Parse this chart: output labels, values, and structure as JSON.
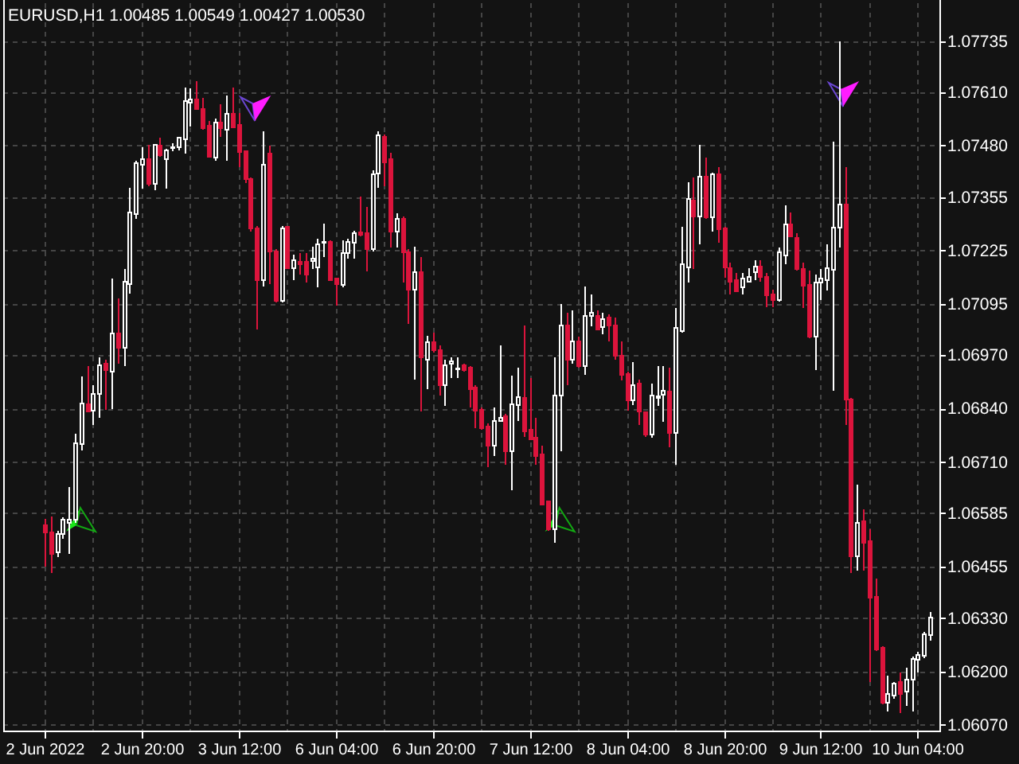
{
  "chart_data": {
    "type": "candlestick",
    "title": "EURUSD,H1 1.00485 1.00549 1.00427 1.00530",
    "categories": [
      "2 Jun 2022",
      null,
      null,
      null,
      null,
      null,
      null,
      null,
      null,
      null,
      null,
      null,
      null,
      null,
      null,
      null,
      "2 Jun 20:00",
      null,
      null,
      null,
      null,
      null,
      null,
      null,
      null,
      null,
      null,
      null,
      null,
      null,
      null,
      null,
      "3 Jun 12:00",
      null,
      null,
      null,
      null,
      null,
      null,
      null,
      null,
      null,
      null,
      null,
      null,
      null,
      null,
      null,
      "6 Jun 04:00",
      null,
      null,
      null,
      null,
      null,
      null,
      null,
      null,
      null,
      null,
      null,
      null,
      null,
      null,
      null,
      "6 Jun 20:00",
      null,
      null,
      null,
      null,
      null,
      null,
      null,
      null,
      null,
      null,
      null,
      null,
      null,
      null,
      null,
      "7 Jun 12:00",
      null,
      null,
      null,
      null,
      null,
      null,
      null,
      null,
      null,
      null,
      null,
      null,
      null,
      null,
      null,
      "8 Jun 04:00",
      null,
      null,
      null,
      null,
      null,
      null,
      null,
      null,
      null,
      null,
      null,
      null,
      null,
      null,
      null,
      "8 Jun 20:00",
      null,
      null,
      null,
      null,
      null,
      null,
      null,
      null,
      null,
      null,
      null,
      null,
      null,
      null,
      null,
      "9 Jun 12:00",
      null,
      null,
      null,
      null,
      null,
      null,
      null,
      null,
      null,
      null,
      null,
      null,
      null,
      null,
      null,
      "10 Jun 04:00",
      null,
      null
    ],
    "ohlc": [
      [
        1.06555,
        1.06571,
        1.06455,
        1.06538
      ],
      [
        1.06538,
        1.06577,
        1.06438,
        1.06486
      ],
      [
        1.0649,
        1.06542,
        1.06477,
        1.06533
      ],
      [
        1.06533,
        1.06574,
        1.06522,
        1.06568
      ],
      [
        1.06561,
        1.06648,
        1.06486,
        1.06569
      ],
      [
        1.06568,
        1.06778,
        1.06561,
        1.06755
      ],
      [
        1.06752,
        1.06917,
        1.06738,
        1.06852
      ],
      [
        1.06849,
        1.06943,
        1.0683,
        1.06833
      ],
      [
        1.06835,
        1.06897,
        1.068,
        1.06875
      ],
      [
        1.06875,
        1.06965,
        1.06816,
        1.06945
      ],
      [
        1.06949,
        1.06959,
        1.06837,
        1.06934
      ],
      [
        1.0693,
        1.07156,
        1.06839,
        1.07023
      ],
      [
        1.07023,
        1.07107,
        1.06949,
        1.06988
      ],
      [
        1.06988,
        1.07179,
        1.06943,
        1.07149
      ],
      [
        1.07143,
        1.07378,
        1.0712,
        1.07318
      ],
      [
        1.07314,
        1.07443,
        1.07301,
        1.07438
      ],
      [
        1.07434,
        1.07477,
        1.07376,
        1.07447
      ],
      [
        1.07447,
        1.07482,
        1.07382,
        1.07386
      ],
      [
        1.07386,
        1.07482,
        1.07372,
        1.07482
      ],
      [
        1.07479,
        1.07499,
        1.07453,
        1.07456
      ],
      [
        1.07447,
        1.07473,
        1.07376,
        1.07469
      ],
      [
        1.07474,
        1.07486,
        1.07466,
        1.07477
      ],
      [
        1.07477,
        1.07502,
        1.07469,
        1.07499
      ],
      [
        1.07495,
        1.07621,
        1.0746,
        1.07589
      ],
      [
        1.07585,
        1.07619,
        1.07527,
        1.07593
      ],
      [
        1.07593,
        1.07637,
        1.07567,
        1.0757
      ],
      [
        1.0757,
        1.07596,
        1.07518,
        1.07522
      ],
      [
        1.07528,
        1.0754,
        1.07451,
        1.07453
      ],
      [
        1.07451,
        1.07546,
        1.07443,
        1.07537
      ],
      [
        1.07537,
        1.0758,
        1.07502,
        1.07522
      ],
      [
        1.07518,
        1.07602,
        1.07443,
        1.07557
      ],
      [
        1.07557,
        1.07621,
        1.07522,
        1.07524
      ],
      [
        1.07531,
        1.07559,
        1.07427,
        1.07464
      ],
      [
        1.07466,
        1.07469,
        1.07389,
        1.07398
      ],
      [
        1.07398,
        1.07402,
        1.0727,
        1.07279
      ],
      [
        1.07279,
        1.07285,
        1.07033,
        1.07153
      ],
      [
        1.07153,
        1.07515,
        1.07137,
        1.07434
      ],
      [
        1.0746,
        1.07479,
        1.07143,
        1.07223
      ],
      [
        1.07223,
        1.07227,
        1.07098,
        1.07102
      ],
      [
        1.07102,
        1.07285,
        1.07098,
        1.07279
      ],
      [
        1.07283,
        1.07285,
        1.07179,
        1.07182
      ],
      [
        1.07182,
        1.07214,
        1.07153,
        1.07201
      ],
      [
        1.07197,
        1.07218,
        1.07166,
        1.07192
      ],
      [
        1.07197,
        1.07218,
        1.07146,
        1.07166
      ],
      [
        1.07199,
        1.07233,
        1.07179,
        1.07204
      ],
      [
        1.07184,
        1.07253,
        1.07134,
        1.0724
      ],
      [
        1.07243,
        1.0729,
        1.07208,
        1.07246
      ],
      [
        1.07246,
        1.07249,
        1.07152,
        1.07153
      ],
      [
        1.07156,
        1.07158,
        1.07091,
        1.07143
      ],
      [
        1.0714,
        1.07249,
        1.07134,
        1.07218
      ],
      [
        1.07218,
        1.07253,
        1.07204,
        1.07246
      ],
      [
        1.07244,
        1.07272,
        1.07205,
        1.07266
      ],
      [
        1.07268,
        1.07356,
        1.07259,
        1.07262
      ],
      [
        1.07266,
        1.0733,
        1.07173,
        1.07227
      ],
      [
        1.07227,
        1.0742,
        1.07223,
        1.07411
      ],
      [
        1.07412,
        1.07514,
        1.07378,
        1.07505
      ],
      [
        1.07501,
        1.07508,
        1.07382,
        1.0744
      ],
      [
        1.07447,
        1.07462,
        1.07231,
        1.0727
      ],
      [
        1.0727,
        1.07315,
        1.07231,
        1.07302
      ],
      [
        1.07302,
        1.07307,
        1.07146,
        1.07221
      ],
      [
        1.07221,
        1.07227,
        1.07046,
        1.0713
      ],
      [
        1.0713,
        1.07233,
        1.0691,
        1.07171
      ],
      [
        1.07171,
        1.07208,
        1.06833,
        1.06965
      ],
      [
        1.06959,
        1.07016,
        1.06887,
        1.07001
      ],
      [
        1.07001,
        1.07024,
        1.06975,
        1.06981
      ],
      [
        1.06981,
        1.06993,
        1.06871,
        1.06897
      ],
      [
        1.06897,
        1.06959,
        1.06846,
        1.06945
      ],
      [
        1.06949,
        1.06965,
        1.06913,
        1.06955
      ],
      [
        1.06935,
        1.06965,
        1.06913,
        1.06937
      ],
      [
        1.06945,
        1.06949,
        1.0693,
        1.06934
      ],
      [
        1.06939,
        1.06943,
        1.06843,
        1.06887
      ],
      [
        1.06891,
        1.06897,
        1.06791,
        1.06835
      ],
      [
        1.06837,
        1.06843,
        1.06787,
        1.06791
      ],
      [
        1.06796,
        1.06804,
        1.06697,
        1.06749
      ],
      [
        1.06749,
        1.06843,
        1.06723,
        1.06809
      ],
      [
        1.06809,
        1.06994,
        1.06807,
        1.06817
      ],
      [
        1.0682,
        1.06826,
        1.06703,
        1.06736
      ],
      [
        1.06736,
        1.06919,
        1.06641,
        1.06849
      ],
      [
        1.06848,
        1.06939,
        1.06809,
        1.06868
      ],
      [
        1.06865,
        1.07042,
        1.06771,
        1.06784
      ],
      [
        1.06787,
        1.06913,
        1.06763,
        1.06765
      ],
      [
        1.06768,
        1.06817,
        1.06703,
        1.06723
      ],
      [
        1.06727,
        1.06749,
        1.06603,
        1.06606
      ],
      [
        1.06613,
        1.06615,
        1.06542,
        1.06546
      ],
      [
        1.06546,
        1.06965,
        1.06513,
        1.06871
      ],
      [
        1.06871,
        1.07094,
        1.06736,
        1.07042
      ],
      [
        1.07042,
        1.07072,
        1.06897,
        1.06959
      ],
      [
        1.06959,
        1.07078,
        1.06949,
        1.07003
      ],
      [
        1.07003,
        1.07014,
        1.06939,
        1.06943
      ],
      [
        1.06943,
        1.07137,
        1.06921,
        1.07065
      ],
      [
        1.07065,
        1.07117,
        1.0704,
        1.07072
      ],
      [
        1.07065,
        1.07078,
        1.07033,
        1.07033
      ],
      [
        1.07037,
        1.07072,
        1.0702,
        1.07058
      ],
      [
        1.07062,
        1.07068,
        1.07003,
        1.07042
      ],
      [
        1.07042,
        1.07062,
        1.06959,
        1.06968
      ],
      [
        1.06968,
        1.07003,
        1.06908,
        1.06921
      ],
      [
        1.06923,
        1.0693,
        1.06835,
        1.06859
      ],
      [
        1.06859,
        1.06953,
        1.06848,
        1.06897
      ],
      [
        1.069,
        1.0691,
        1.068,
        1.06833
      ],
      [
        1.0683,
        1.06833,
        1.06771,
        1.06777
      ],
      [
        1.06777,
        1.06901,
        1.06768,
        1.06871
      ],
      [
        1.06866,
        1.06943,
        1.06846,
        1.06869
      ],
      [
        1.06874,
        1.06943,
        1.06807,
        1.06882
      ],
      [
        1.06881,
        1.0694,
        1.06745,
        1.06781
      ],
      [
        1.06781,
        1.07085,
        1.06703,
        1.07036
      ],
      [
        1.07029,
        1.07283,
        1.07024,
        1.07191
      ],
      [
        1.07184,
        1.07391,
        1.07146,
        1.0735
      ],
      [
        1.07346,
        1.07402,
        1.07179,
        1.07308
      ],
      [
        1.07308,
        1.07482,
        1.0724,
        1.07404
      ],
      [
        1.07404,
        1.07451,
        1.07301,
        1.07305
      ],
      [
        1.07305,
        1.07415,
        1.0727,
        1.07411
      ],
      [
        1.07411,
        1.07427,
        1.07243,
        1.07276
      ],
      [
        1.07279,
        1.07283,
        1.07158,
        1.07184
      ],
      [
        1.07182,
        1.07195,
        1.07117,
        1.07149
      ],
      [
        1.07152,
        1.07169,
        1.07124,
        1.07126
      ],
      [
        1.07134,
        1.07169,
        1.07117,
        1.07156
      ],
      [
        1.07149,
        1.07182,
        1.07146,
        1.0716
      ],
      [
        1.07171,
        1.07201,
        1.07153,
        1.07186
      ],
      [
        1.07186,
        1.07201,
        1.07149,
        1.0716
      ],
      [
        1.0716,
        1.07169,
        1.07087,
        1.07115
      ],
      [
        1.07117,
        1.0713,
        1.07087,
        1.07104
      ],
      [
        1.07104,
        1.07231,
        1.071,
        1.07221
      ],
      [
        1.07212,
        1.07334,
        1.07192,
        1.07289
      ],
      [
        1.07288,
        1.07318,
        1.07257,
        1.07259
      ],
      [
        1.07255,
        1.07266,
        1.07175,
        1.07179
      ],
      [
        1.07179,
        1.07195,
        1.07085,
        1.07139
      ],
      [
        1.0714,
        1.07175,
        1.07011,
        1.07014
      ],
      [
        1.07014,
        1.07166,
        1.06934,
        1.07147
      ],
      [
        1.07147,
        1.07179,
        1.07104,
        1.07156
      ],
      [
        1.07153,
        1.0724,
        1.07127,
        1.07182
      ],
      [
        1.07178,
        1.0749,
        1.06882,
        1.07281
      ],
      [
        1.07281,
        1.07734,
        1.07231,
        1.07337
      ],
      [
        1.07337,
        1.07427,
        1.068,
        1.06862
      ],
      [
        1.06862,
        1.06865,
        1.06438,
        1.0648
      ],
      [
        1.0648,
        1.06654,
        1.06445,
        1.06561
      ],
      [
        1.06565,
        1.06593,
        1.06445,
        1.06513
      ],
      [
        1.06516,
        1.06546,
        1.06173,
        1.06378
      ],
      [
        1.0638,
        1.06425,
        1.06248,
        1.06253
      ],
      [
        1.06257,
        1.06261,
        1.06119,
        1.06122
      ],
      [
        1.06122,
        1.06189,
        1.06102,
        1.06145
      ],
      [
        1.06141,
        1.06173,
        1.06132,
        1.06169
      ],
      [
        1.06173,
        1.06197,
        1.06098,
        1.06145
      ],
      [
        1.0615,
        1.06209,
        1.06115,
        1.0618
      ],
      [
        1.0618,
        1.06235,
        1.06102,
        1.06229
      ],
      [
        1.06228,
        1.06247,
        1.06197,
        1.0624
      ],
      [
        1.06238,
        1.06296,
        1.06231,
        1.0629
      ],
      [
        1.06287,
        1.06344,
        1.06274,
        1.06331
      ]
    ],
    "colors": [
      "#dc143c",
      "#dc143c",
      "#ffffff",
      "#ffffff",
      "#ffffff",
      "#ffffff",
      "#ffffff",
      "#dc143c",
      "#ffffff",
      "#ffffff",
      "#dc143c",
      "#ffffff",
      "#dc143c",
      "#ffffff",
      "#ffffff",
      "#ffffff",
      "#ffffff",
      "#dc143c",
      "#ffffff",
      "#dc143c",
      "#ffffff",
      "#ffffff",
      "#ffffff",
      "#ffffff",
      "#ffffff",
      "#dc143c",
      "#dc143c",
      "#dc143c",
      "#ffffff",
      "#dc143c",
      "#ffffff",
      "#dc143c",
      "#dc143c",
      "#dc143c",
      "#dc143c",
      "#dc143c",
      "#ffffff",
      "#dc143c",
      "#dc143c",
      "#ffffff",
      "#dc143c",
      "#ffffff",
      "#dc143c",
      "#dc143c",
      "#ffffff",
      "#ffffff",
      "#ffffff",
      "#dc143c",
      "#dc143c",
      "#ffffff",
      "#ffffff",
      "#ffffff",
      "#dc143c",
      "#dc143c",
      "#ffffff",
      "#ffffff",
      "#dc143c",
      "#dc143c",
      "#ffffff",
      "#dc143c",
      "#dc143c",
      "#ffffff",
      "#dc143c",
      "#ffffff",
      "#dc143c",
      "#dc143c",
      "#ffffff",
      "#ffffff",
      "#ffffff",
      "#dc143c",
      "#dc143c",
      "#dc143c",
      "#dc143c",
      "#dc143c",
      "#ffffff",
      "#ffffff",
      "#dc143c",
      "#ffffff",
      "#ffffff",
      "#dc143c",
      "#dc143c",
      "#dc143c",
      "#dc143c",
      "#dc143c",
      "#ffffff",
      "#ffffff",
      "#dc143c",
      "#ffffff",
      "#dc143c",
      "#ffffff",
      "#ffffff",
      "#dc143c",
      "#ffffff",
      "#dc143c",
      "#dc143c",
      "#dc143c",
      "#dc143c",
      "#ffffff",
      "#dc143c",
      "#dc143c",
      "#ffffff",
      "#ffffff",
      "#ffffff",
      "#dc143c",
      "#ffffff",
      "#ffffff",
      "#ffffff",
      "#dc143c",
      "#ffffff",
      "#dc143c",
      "#ffffff",
      "#dc143c",
      "#dc143c",
      "#dc143c",
      "#dc143c",
      "#ffffff",
      "#ffffff",
      "#ffffff",
      "#dc143c",
      "#dc143c",
      "#dc143c",
      "#ffffff",
      "#ffffff",
      "#dc143c",
      "#dc143c",
      "#dc143c",
      "#dc143c",
      "#ffffff",
      "#ffffff",
      "#ffffff",
      "#ffffff",
      "#ffffff",
      "#dc143c",
      "#dc143c",
      "#ffffff",
      "#dc143c",
      "#dc143c",
      "#dc143c",
      "#dc143c",
      "#ffffff",
      "#ffffff",
      "#dc143c",
      "#ffffff",
      "#ffffff",
      "#ffffff",
      "#ffffff",
      "#ffffff"
    ],
    "ylim": [
      1.06055,
      1.07827
    ],
    "yticks": [
      {
        "value": 1.0607,
        "label": "1.06070"
      },
      {
        "value": 1.062,
        "label": "1.06200"
      },
      {
        "value": 1.0633,
        "label": "1.06330"
      },
      {
        "value": 1.06455,
        "label": "1.06455"
      },
      {
        "value": 1.06585,
        "label": "1.06585"
      },
      {
        "value": 1.0671,
        "label": "1.06710"
      },
      {
        "value": 1.0684,
        "label": "1.06840"
      },
      {
        "value": 1.0697,
        "label": "1.06970"
      },
      {
        "value": 1.07095,
        "label": "1.07095"
      },
      {
        "value": 1.07225,
        "label": "1.07225"
      },
      {
        "value": 1.07355,
        "label": "1.07355"
      },
      {
        "value": 1.0748,
        "label": "1.07480"
      },
      {
        "value": 1.0761,
        "label": "1.07610"
      },
      {
        "value": 1.07735,
        "label": "1.07735"
      }
    ],
    "grid": true
  }
}
